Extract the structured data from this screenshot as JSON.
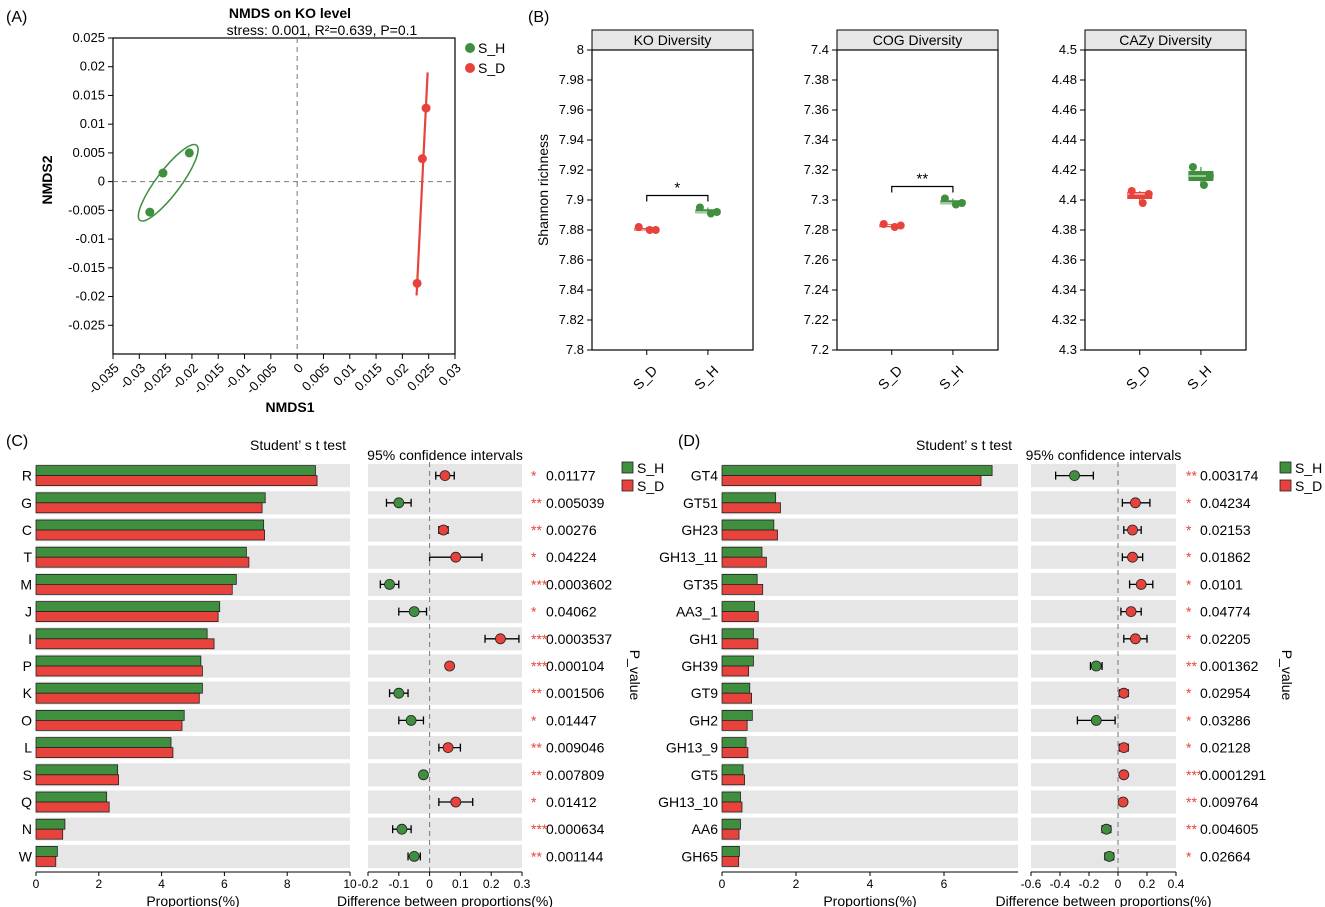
{
  "colors": {
    "S_H": "#3f8f3f",
    "S_D": "#e8423c",
    "stripe": "#e6e6e6",
    "sig": "#e8423c"
  },
  "panels": {
    "A": "(A)",
    "B": "(B)",
    "C": "(C)",
    "D": "(D)"
  },
  "chart_data": [
    {
      "type": "scatter",
      "panel": "A",
      "title": "NMDS on KO level",
      "subtitle": "stress: 0.001, R²=0.639, P=0.1",
      "xlabel": "NMDS1",
      "ylabel": "NMDS2",
      "xlim": [
        -0.035,
        0.03
      ],
      "ylim": [
        -0.03,
        0.025
      ],
      "xticks": [
        "-0.035",
        "-0.03",
        "-0.025",
        "-0.02",
        "-0.015",
        "-0.01",
        "-0.005",
        "0",
        "0.005",
        "0.01",
        "0.015",
        "0.02",
        "0.025",
        "0.03"
      ],
      "yticks": [
        "0.025",
        "0.02",
        "0.015",
        "0.01",
        "0.005",
        "0",
        "-0.005",
        "-0.01",
        "-0.015",
        "-0.02",
        "-0.025"
      ],
      "legend": [
        "S_H",
        "S_D"
      ],
      "series": [
        {
          "name": "S_H",
          "points": [
            [
              -0.0205,
              0.005
            ],
            [
              -0.0255,
              0.0015
            ],
            [
              -0.028,
              -0.0053
            ]
          ]
        },
        {
          "name": "S_D",
          "points": [
            [
              0.0245,
              0.0128
            ],
            [
              0.0238,
              0.004
            ],
            [
              0.0228,
              -0.0177
            ]
          ]
        }
      ]
    },
    {
      "type": "boxplot",
      "panel": "B",
      "ylabel": "Shannon richness",
      "subplots": [
        {
          "title": "KO Diversity",
          "ylim": [
            7.8,
            8.0
          ],
          "yticks": [
            "8",
            "7.98",
            "7.96",
            "7.94",
            "7.92",
            "7.9",
            "7.88",
            "7.86",
            "7.84",
            "7.82",
            "7.8"
          ],
          "categories": [
            "S_D",
            "S_H"
          ],
          "sig": "*",
          "groups": [
            {
              "name": "S_D",
              "points": [
                7.882,
                7.88,
                7.88
              ]
            },
            {
              "name": "S_H",
              "points": [
                7.895,
                7.891,
                7.892
              ]
            }
          ]
        },
        {
          "title": "COG Diversity",
          "ylim": [
            7.2,
            7.4
          ],
          "yticks": [
            "7.4",
            "7.38",
            "7.36",
            "7.34",
            "7.32",
            "7.3",
            "7.28",
            "7.26",
            "7.24",
            "7.22",
            "7.2"
          ],
          "categories": [
            "S_D",
            "S_H"
          ],
          "sig": "**",
          "groups": [
            {
              "name": "S_D",
              "points": [
                7.284,
                7.282,
                7.283
              ]
            },
            {
              "name": "S_H",
              "points": [
                7.301,
                7.297,
                7.298
              ]
            }
          ]
        },
        {
          "title": "CAZy Diversity",
          "ylim": [
            4.3,
            4.5
          ],
          "yticks": [
            "4.5",
            "4.48",
            "4.46",
            "4.44",
            "4.42",
            "4.4",
            "4.38",
            "4.36",
            "4.34",
            "4.32",
            "4.3"
          ],
          "categories": [
            "S_D",
            "S_H"
          ],
          "sig": "",
          "groups": [
            {
              "name": "S_D",
              "points": [
                4.406,
                4.398,
                4.404
              ]
            },
            {
              "name": "S_H",
              "points": [
                4.422,
                4.41,
                4.416
              ]
            }
          ]
        }
      ]
    },
    {
      "type": "extended_error_bar",
      "panel": "C",
      "title": "Student’ s t test",
      "ci_title": "95% confidence intervals",
      "xlabel_left": "Proportions(%)",
      "xlabel_right": "Difference between proportions(%)",
      "pvalue_label": "P_value",
      "xlim_left": [
        0,
        10
      ],
      "xticks_left": [
        "0",
        "2",
        "4",
        "6",
        "8",
        "10"
      ],
      "xlim_right": [
        -0.2,
        0.3
      ],
      "xticks_right": [
        "-0.2",
        "-0.1",
        "0",
        "0.1",
        "0.2",
        "0.3"
      ],
      "legend": [
        "S_H",
        "S_D"
      ],
      "rows": [
        {
          "label": "R",
          "S_H": 8.9,
          "S_D": 8.95,
          "diff": 0.05,
          "lo": 0.02,
          "hi": 0.08,
          "sig": "*",
          "p": "0.01177"
        },
        {
          "label": "G",
          "S_H": 7.3,
          "S_D": 7.2,
          "diff": -0.1,
          "lo": -0.14,
          "hi": -0.06,
          "sig": "**",
          "p": "0.005039"
        },
        {
          "label": "C",
          "S_H": 7.25,
          "S_D": 7.28,
          "diff": 0.045,
          "lo": 0.03,
          "hi": 0.06,
          "sig": "**",
          "p": "0.00276"
        },
        {
          "label": "T",
          "S_H": 6.7,
          "S_D": 6.78,
          "diff": 0.085,
          "lo": 0.0,
          "hi": 0.17,
          "sig": "*",
          "p": "0.04224"
        },
        {
          "label": "M",
          "S_H": 6.38,
          "S_D": 6.25,
          "diff": -0.13,
          "lo": -0.16,
          "hi": -0.1,
          "sig": "***",
          "p": "0.0003602"
        },
        {
          "label": "J",
          "S_H": 5.85,
          "S_D": 5.8,
          "diff": -0.05,
          "lo": -0.1,
          "hi": -0.01,
          "sig": "*",
          "p": "0.04062"
        },
        {
          "label": "I",
          "S_H": 5.45,
          "S_D": 5.67,
          "diff": 0.23,
          "lo": 0.18,
          "hi": 0.29,
          "sig": "***",
          "p": "0.0003537"
        },
        {
          "label": "P",
          "S_H": 5.25,
          "S_D": 5.3,
          "diff": 0.065,
          "lo": 0.055,
          "hi": 0.075,
          "sig": "***",
          "p": "0.000104"
        },
        {
          "label": "K",
          "S_H": 5.3,
          "S_D": 5.2,
          "diff": -0.1,
          "lo": -0.13,
          "hi": -0.07,
          "sig": "**",
          "p": "0.001506"
        },
        {
          "label": "O",
          "S_H": 4.72,
          "S_D": 4.65,
          "diff": -0.06,
          "lo": -0.1,
          "hi": -0.02,
          "sig": "*",
          "p": "0.01447"
        },
        {
          "label": "L",
          "S_H": 4.3,
          "S_D": 4.36,
          "diff": 0.06,
          "lo": 0.03,
          "hi": 0.1,
          "sig": "**",
          "p": "0.009046"
        },
        {
          "label": "S",
          "S_H": 2.6,
          "S_D": 2.63,
          "diff": -0.02,
          "lo": -0.03,
          "hi": -0.01,
          "sig": "**",
          "p": "0.007809"
        },
        {
          "label": "Q",
          "S_H": 2.25,
          "S_D": 2.33,
          "diff": 0.085,
          "lo": 0.03,
          "hi": 0.14,
          "sig": "*",
          "p": "0.01412"
        },
        {
          "label": "N",
          "S_H": 0.92,
          "S_D": 0.85,
          "diff": -0.09,
          "lo": -0.12,
          "hi": -0.06,
          "sig": "***",
          "p": "0.000634"
        },
        {
          "label": "W",
          "S_H": 0.68,
          "S_D": 0.63,
          "diff": -0.05,
          "lo": -0.07,
          "hi": -0.03,
          "sig": "**",
          "p": "0.001144"
        }
      ]
    },
    {
      "type": "extended_error_bar",
      "panel": "D",
      "title": "Student’ s t test",
      "ci_title": "95% confidence intervals",
      "xlabel_left": "Proportions(%)",
      "xlabel_right": "Difference between proportions(%)",
      "pvalue_label": "P_value",
      "xlim_left": [
        0,
        8
      ],
      "xticks_left": [
        "0",
        "2",
        "4",
        "6"
      ],
      "xlim_right": [
        -0.6,
        0.4
      ],
      "xticks_right": [
        "-0.6",
        "-0.4",
        "-0.2",
        "0",
        "0.2",
        "0.4"
      ],
      "legend": [
        "S_H",
        "S_D"
      ],
      "rows": [
        {
          "label": "GT4",
          "S_H": 7.3,
          "S_D": 7.0,
          "diff": -0.3,
          "lo": -0.43,
          "hi": -0.17,
          "sig": "**",
          "p": "0.003174"
        },
        {
          "label": "GT51",
          "S_H": 1.45,
          "S_D": 1.58,
          "diff": 0.12,
          "lo": 0.03,
          "hi": 0.22,
          "sig": "*",
          "p": "0.04234"
        },
        {
          "label": "GH23",
          "S_H": 1.4,
          "S_D": 1.5,
          "diff": 0.1,
          "lo": 0.04,
          "hi": 0.16,
          "sig": "*",
          "p": "0.02153"
        },
        {
          "label": "GH13_11",
          "S_H": 1.08,
          "S_D": 1.2,
          "diff": 0.1,
          "lo": 0.03,
          "hi": 0.17,
          "sig": "*",
          "p": "0.01862"
        },
        {
          "label": "GT35",
          "S_H": 0.95,
          "S_D": 1.1,
          "diff": 0.16,
          "lo": 0.08,
          "hi": 0.24,
          "sig": "*",
          "p": "0.0101"
        },
        {
          "label": "AA3_1",
          "S_H": 0.88,
          "S_D": 0.98,
          "diff": 0.09,
          "lo": 0.02,
          "hi": 0.16,
          "sig": "*",
          "p": "0.04774"
        },
        {
          "label": "GH1",
          "S_H": 0.85,
          "S_D": 0.97,
          "diff": 0.12,
          "lo": 0.04,
          "hi": 0.2,
          "sig": "*",
          "p": "0.02205"
        },
        {
          "label": "GH39",
          "S_H": 0.85,
          "S_D": 0.72,
          "diff": -0.15,
          "lo": -0.19,
          "hi": -0.11,
          "sig": "**",
          "p": "0.001362"
        },
        {
          "label": "GT9",
          "S_H": 0.75,
          "S_D": 0.8,
          "diff": 0.04,
          "lo": 0.01,
          "hi": 0.07,
          "sig": "*",
          "p": "0.02954"
        },
        {
          "label": "GH2",
          "S_H": 0.82,
          "S_D": 0.68,
          "diff": -0.15,
          "lo": -0.28,
          "hi": -0.02,
          "sig": "*",
          "p": "0.03286"
        },
        {
          "label": "GH13_9",
          "S_H": 0.65,
          "S_D": 0.7,
          "diff": 0.04,
          "lo": 0.01,
          "hi": 0.07,
          "sig": "*",
          "p": "0.02128"
        },
        {
          "label": "GT5",
          "S_H": 0.57,
          "S_D": 0.61,
          "diff": 0.04,
          "lo": 0.02,
          "hi": 0.06,
          "sig": "***",
          "p": "0.0001291"
        },
        {
          "label": "GH13_10",
          "S_H": 0.5,
          "S_D": 0.54,
          "diff": 0.035,
          "lo": 0.015,
          "hi": 0.055,
          "sig": "**",
          "p": "0.009764"
        },
        {
          "label": "AA6",
          "S_H": 0.5,
          "S_D": 0.46,
          "diff": -0.08,
          "lo": -0.11,
          "hi": -0.05,
          "sig": "**",
          "p": "0.004605"
        },
        {
          "label": "GH65",
          "S_H": 0.47,
          "S_D": 0.45,
          "diff": -0.06,
          "lo": -0.09,
          "hi": -0.03,
          "sig": "*",
          "p": "0.02664"
        }
      ]
    }
  ]
}
